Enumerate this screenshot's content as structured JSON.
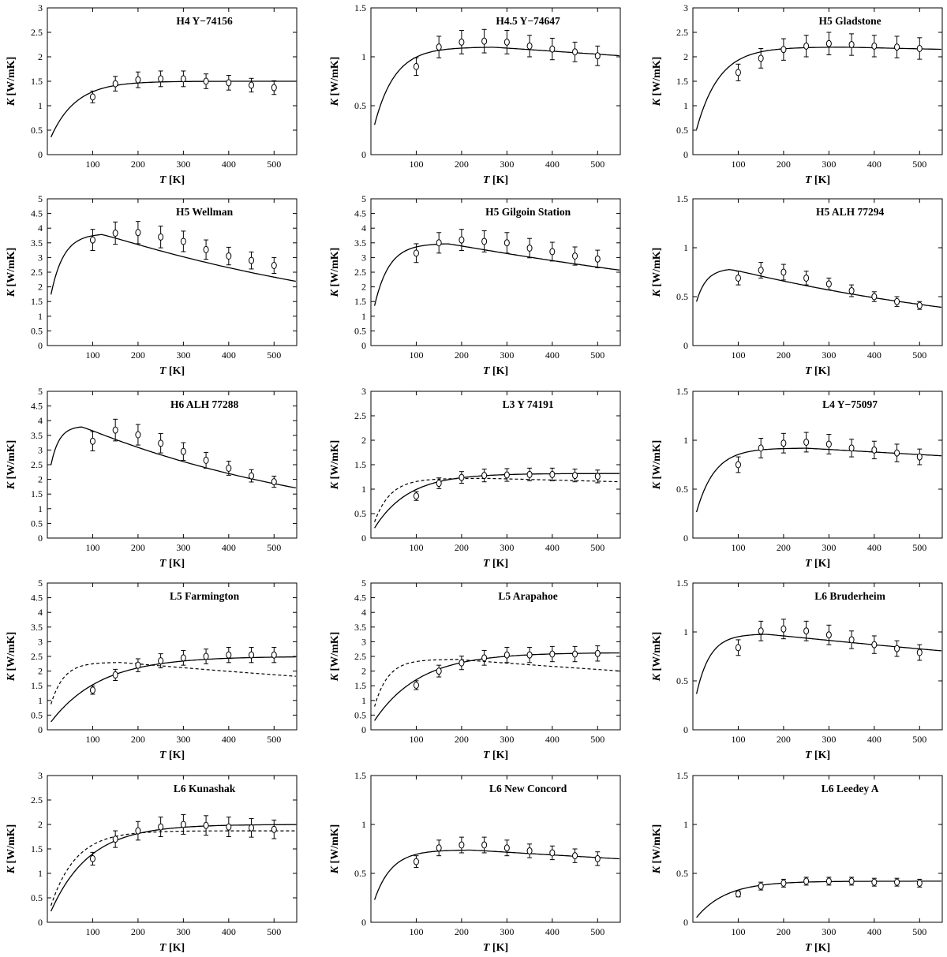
{
  "axis_labels": {
    "x_italic": "T",
    "x_unit": " [K]",
    "y_italic": "K",
    "y_unit": " [W/mK]"
  },
  "chart_data": [
    {
      "type": "line",
      "title": "H4  Y−74156",
      "xlabel": "T [K]",
      "ylabel": "K [W/mK]",
      "xlim": [
        0,
        550
      ],
      "ylim": [
        0,
        3
      ],
      "x_ticks": [
        100,
        200,
        300,
        400,
        500
      ],
      "y_ticks": [
        0,
        0.5,
        1,
        1.5,
        2,
        2.5,
        3
      ],
      "x": [
        100,
        150,
        200,
        250,
        300,
        350,
        400,
        450,
        500
      ],
      "values": [
        1.18,
        1.45,
        1.53,
        1.55,
        1.55,
        1.5,
        1.47,
        1.42,
        1.37
      ],
      "err": [
        0.12,
        0.15,
        0.16,
        0.16,
        0.16,
        0.15,
        0.15,
        0.14,
        0.14
      ],
      "model": {
        "peak": 1.5,
        "tpeak": 300,
        "k0": 0.18,
        "fall": 0.0,
        "rise": 55
      },
      "dashed": null
    },
    {
      "type": "line",
      "title": "H4.5  Y−74647",
      "xlabel": "T [K]",
      "ylabel": "K [W/mK]",
      "xlim": [
        0,
        550
      ],
      "ylim": [
        0,
        1.5
      ],
      "x_ticks": [
        100,
        200,
        300,
        400,
        500
      ],
      "y_ticks": [
        0,
        0.5,
        1,
        1.5
      ],
      "x": [
        100,
        150,
        200,
        250,
        300,
        350,
        400,
        450,
        500
      ],
      "values": [
        0.9,
        1.1,
        1.15,
        1.16,
        1.15,
        1.11,
        1.08,
        1.05,
        1.01
      ],
      "err": [
        0.09,
        0.11,
        0.12,
        0.12,
        0.12,
        0.11,
        0.11,
        0.1,
        0.1
      ],
      "model": {
        "peak": 1.1,
        "tpeak": 270,
        "k0": 0.15,
        "fall": 0.0003,
        "rise": 45
      },
      "dashed": null
    },
    {
      "type": "line",
      "title": "H5  Gladstone",
      "xlabel": "T [K]",
      "ylabel": "K [W/mK]",
      "xlim": [
        0,
        550
      ],
      "ylim": [
        0,
        3
      ],
      "x_ticks": [
        100,
        200,
        300,
        400,
        500
      ],
      "y_ticks": [
        0,
        0.5,
        1,
        1.5,
        2,
        2.5,
        3
      ],
      "x": [
        100,
        150,
        200,
        250,
        300,
        350,
        400,
        450,
        500
      ],
      "values": [
        1.68,
        1.97,
        2.15,
        2.22,
        2.27,
        2.25,
        2.22,
        2.2,
        2.17
      ],
      "err": [
        0.17,
        0.2,
        0.22,
        0.22,
        0.23,
        0.22,
        0.22,
        0.22,
        0.22
      ],
      "model": {
        "peak": 2.2,
        "tpeak": 330,
        "k0": 0.22,
        "fall": 0.0001,
        "rise": 50
      },
      "dashed": null
    },
    {
      "type": "line",
      "title": "H5  Wellman",
      "xlabel": "T [K]",
      "ylabel": "K [W/mK]",
      "xlim": [
        0,
        550
      ],
      "ylim": [
        0,
        5
      ],
      "x_ticks": [
        100,
        200,
        300,
        400,
        500
      ],
      "y_ticks": [
        0,
        0.5,
        1,
        1.5,
        2,
        2.5,
        3,
        3.5,
        4,
        4.5,
        5
      ],
      "x": [
        100,
        150,
        200,
        250,
        300,
        350,
        400,
        450,
        500
      ],
      "values": [
        3.6,
        3.83,
        3.85,
        3.7,
        3.55,
        3.27,
        3.05,
        2.9,
        2.73
      ],
      "err": [
        0.36,
        0.38,
        0.38,
        0.37,
        0.35,
        0.33,
        0.3,
        0.29,
        0.27
      ],
      "model": {
        "peak": 3.82,
        "tpeak": 120,
        "k0": 1.05,
        "fall": 0.0013,
        "rise": 28
      },
      "dashed": null
    },
    {
      "type": "line",
      "title": "H5  Gilgoin Station",
      "xlabel": "T [K]",
      "ylabel": "K [W/mK]",
      "xlim": [
        0,
        550
      ],
      "ylim": [
        0,
        5
      ],
      "x_ticks": [
        100,
        200,
        300,
        400,
        500
      ],
      "y_ticks": [
        0,
        0.5,
        1,
        1.5,
        2,
        2.5,
        3,
        3.5,
        4,
        4.5,
        5
      ],
      "x": [
        100,
        150,
        200,
        250,
        300,
        350,
        400,
        450,
        500
      ],
      "values": [
        3.15,
        3.5,
        3.6,
        3.55,
        3.5,
        3.32,
        3.2,
        3.05,
        2.95
      ],
      "err": [
        0.32,
        0.35,
        0.36,
        0.36,
        0.35,
        0.33,
        0.32,
        0.31,
        0.3
      ],
      "model": {
        "peak": 3.48,
        "tpeak": 170,
        "k0": 0.75,
        "fall": 0.0008,
        "rise": 32
      },
      "dashed": null
    },
    {
      "type": "line",
      "title": "H5  ALH 77294",
      "xlabel": "T [K]",
      "ylabel": "K [W/mK]",
      "xlim": [
        0,
        550
      ],
      "ylim": [
        0,
        1.5
      ],
      "x_ticks": [
        100,
        200,
        300,
        400,
        500
      ],
      "y_ticks": [
        0,
        0.5,
        1,
        1.5
      ],
      "x": [
        100,
        150,
        200,
        250,
        300,
        350,
        400,
        450,
        500
      ],
      "values": [
        0.69,
        0.77,
        0.75,
        0.69,
        0.63,
        0.56,
        0.5,
        0.45,
        0.41
      ],
      "err": [
        0.07,
        0.08,
        0.08,
        0.07,
        0.06,
        0.06,
        0.05,
        0.05,
        0.04
      ],
      "model": {
        "peak": 0.79,
        "tpeak": 80,
        "k0": 0.3,
        "fall": 0.0015,
        "rise": 22
      },
      "dashed": null
    },
    {
      "type": "line",
      "title": "H6  ALH 77288",
      "xlabel": "T [K]",
      "ylabel": "K [W/mK]",
      "xlim": [
        0,
        550
      ],
      "ylim": [
        0,
        5
      ],
      "x_ticks": [
        100,
        200,
        300,
        400,
        500
      ],
      "y_ticks": [
        0,
        0.5,
        1,
        1.5,
        2,
        2.5,
        3,
        3.5,
        4,
        4.5,
        5
      ],
      "x": [
        100,
        150,
        200,
        250,
        300,
        350,
        400,
        450,
        500
      ],
      "values": [
        3.3,
        3.68,
        3.52,
        3.23,
        2.95,
        2.65,
        2.38,
        2.12,
        1.92
      ],
      "err": [
        0.33,
        0.37,
        0.35,
        0.33,
        0.3,
        0.27,
        0.24,
        0.21,
        0.19
      ],
      "model": {
        "peak": 3.82,
        "tpeak": 75,
        "k0": 1.75,
        "fall": 0.0017,
        "rise": 18
      },
      "dashed": null
    },
    {
      "type": "line",
      "title": "L3  Y 74191",
      "xlabel": "T [K]",
      "ylabel": "K [W/mK]",
      "xlim": [
        0,
        550
      ],
      "ylim": [
        0,
        3
      ],
      "x_ticks": [
        100,
        200,
        300,
        400,
        500
      ],
      "y_ticks": [
        0,
        0.5,
        1,
        1.5,
        2,
        2.5,
        3
      ],
      "x": [
        100,
        150,
        200,
        250,
        300,
        350,
        400,
        450,
        500
      ],
      "values": [
        0.86,
        1.12,
        1.24,
        1.28,
        1.29,
        1.3,
        1.3,
        1.28,
        1.26
      ],
      "err": [
        0.09,
        0.11,
        0.12,
        0.13,
        0.13,
        0.13,
        0.13,
        0.13,
        0.13
      ],
      "model": {
        "peak": 1.32,
        "tpeak": 480,
        "k0": 0.08,
        "fall": 0.0,
        "rise": 75
      },
      "dashed": {
        "peak": 1.22,
        "tpeak": 260,
        "k0": 0.1,
        "fall": 0.0002,
        "rise": 35
      }
    },
    {
      "type": "line",
      "title": "L4  Y−75097",
      "xlabel": "T [K]",
      "ylabel": "K [W/mK]",
      "xlim": [
        0,
        550
      ],
      "ylim": [
        0,
        1.5
      ],
      "x_ticks": [
        100,
        200,
        300,
        400,
        500
      ],
      "y_ticks": [
        0,
        0.5,
        1,
        1.5
      ],
      "x": [
        100,
        150,
        200,
        250,
        300,
        350,
        400,
        450,
        500
      ],
      "values": [
        0.75,
        0.92,
        0.97,
        0.98,
        0.96,
        0.92,
        0.9,
        0.87,
        0.83
      ],
      "err": [
        0.08,
        0.1,
        0.1,
        0.1,
        0.1,
        0.09,
        0.09,
        0.09,
        0.08
      ],
      "model": {
        "peak": 0.92,
        "tpeak": 250,
        "k0": 0.12,
        "fall": 0.0003,
        "rise": 40
      },
      "dashed": null
    },
    {
      "type": "line",
      "title": "L5  Farmington",
      "xlabel": "T [K]",
      "ylabel": "K [W/mK]",
      "xlim": [
        0,
        550
      ],
      "ylim": [
        0,
        5
      ],
      "x_ticks": [
        100,
        200,
        300,
        400,
        500
      ],
      "y_ticks": [
        0,
        0.5,
        1,
        1.5,
        2,
        2.5,
        3,
        3.5,
        4,
        4.5,
        5
      ],
      "x": [
        100,
        150,
        200,
        250,
        300,
        350,
        400,
        450,
        500
      ],
      "values": [
        1.35,
        1.87,
        2.2,
        2.35,
        2.45,
        2.5,
        2.55,
        2.55,
        2.55
      ],
      "err": [
        0.14,
        0.19,
        0.22,
        0.24,
        0.25,
        0.25,
        0.26,
        0.26,
        0.26
      ],
      "model": {
        "peak": 2.5,
        "tpeak": 600,
        "k0": 0.1,
        "fall": 0.0,
        "rise": 110
      },
      "dashed": {
        "peak": 2.3,
        "tpeak": 160,
        "k0": 0.4,
        "fall": 0.0006,
        "rise": 28
      }
    },
    {
      "type": "line",
      "title": "L5  Arapahoe",
      "xlabel": "T [K]",
      "ylabel": "K [W/mK]",
      "xlim": [
        0,
        550
      ],
      "ylim": [
        0,
        5
      ],
      "x_ticks": [
        100,
        200,
        300,
        400,
        500
      ],
      "y_ticks": [
        0,
        0.5,
        1,
        1.5,
        2,
        2.5,
        3,
        3.5,
        4,
        4.5,
        5
      ],
      "x": [
        100,
        150,
        200,
        250,
        300,
        350,
        400,
        450,
        500
      ],
      "values": [
        1.52,
        2.0,
        2.28,
        2.45,
        2.55,
        2.55,
        2.58,
        2.58,
        2.6
      ],
      "err": [
        0.15,
        0.2,
        0.23,
        0.25,
        0.26,
        0.26,
        0.26,
        0.26,
        0.26
      ],
      "model": {
        "peak": 2.63,
        "tpeak": 580,
        "k0": 0.12,
        "fall": 0.0,
        "rise": 100
      },
      "dashed": {
        "peak": 2.4,
        "tpeak": 190,
        "k0": 0.3,
        "fall": 0.0005,
        "rise": 30
      }
    },
    {
      "type": "line",
      "title": "L6  Bruderheim",
      "xlabel": "T [K]",
      "ylabel": "K [W/mK]",
      "xlim": [
        0,
        550
      ],
      "ylim": [
        0,
        1.5
      ],
      "x_ticks": [
        100,
        200,
        300,
        400,
        500
      ],
      "y_ticks": [
        0,
        0.5,
        1,
        1.5
      ],
      "x": [
        100,
        150,
        200,
        250,
        300,
        350,
        400,
        450,
        500
      ],
      "values": [
        0.84,
        1.01,
        1.03,
        1.01,
        0.97,
        0.92,
        0.87,
        0.83,
        0.79
      ],
      "err": [
        0.08,
        0.1,
        0.1,
        0.1,
        0.1,
        0.09,
        0.09,
        0.08,
        0.08
      ],
      "model": {
        "peak": 0.98,
        "tpeak": 160,
        "k0": 0.18,
        "fall": 0.0005,
        "rise": 30
      },
      "dashed": null
    },
    {
      "type": "line",
      "title": "L6 Kunashak",
      "xlabel": "T [K]",
      "ylabel": "K [W/mK]",
      "xlim": [
        0,
        550
      ],
      "ylim": [
        0,
        3
      ],
      "x_ticks": [
        100,
        200,
        300,
        400,
        500
      ],
      "y_ticks": [
        0,
        0.5,
        1,
        1.5,
        2,
        2.5,
        3
      ],
      "x": [
        100,
        150,
        200,
        250,
        300,
        350,
        400,
        450,
        500
      ],
      "values": [
        1.3,
        1.7,
        1.87,
        1.95,
        2.0,
        1.98,
        1.95,
        1.93,
        1.9
      ],
      "err": [
        0.13,
        0.17,
        0.19,
        0.2,
        0.2,
        0.2,
        0.2,
        0.19,
        0.19
      ],
      "model": {
        "peak": 2.0,
        "tpeak": 480,
        "k0": 0.05,
        "fall": 0.0,
        "rise": 85
      },
      "dashed": {
        "peak": 1.87,
        "tpeak": 330,
        "k0": 0.1,
        "fall": 0.0,
        "rise": 55
      }
    },
    {
      "type": "line",
      "title": "L6 New Concord",
      "xlabel": "T [K]",
      "ylabel": "K [W/mK]",
      "xlim": [
        0,
        550
      ],
      "ylim": [
        0,
        1.5
      ],
      "x_ticks": [
        100,
        200,
        300,
        400,
        500
      ],
      "y_ticks": [
        0,
        0.5,
        1,
        1.5
      ],
      "x": [
        100,
        150,
        200,
        250,
        300,
        350,
        400,
        450,
        500
      ],
      "values": [
        0.62,
        0.76,
        0.79,
        0.79,
        0.76,
        0.73,
        0.71,
        0.68,
        0.65
      ],
      "err": [
        0.06,
        0.08,
        0.08,
        0.08,
        0.08,
        0.07,
        0.07,
        0.07,
        0.07
      ],
      "model": {
        "peak": 0.74,
        "tpeak": 220,
        "k0": 0.11,
        "fall": 0.0004,
        "rise": 38
      },
      "dashed": null
    },
    {
      "type": "line",
      "title": "L6 Leedey A",
      "xlabel": "T [K]",
      "ylabel": "K [W/mK]",
      "xlim": [
        0,
        550
      ],
      "ylim": [
        0,
        1.5
      ],
      "x_ticks": [
        100,
        200,
        300,
        400,
        500
      ],
      "y_ticks": [
        0,
        0.5,
        1,
        1.5
      ],
      "x": [
        100,
        150,
        200,
        250,
        300,
        350,
        400,
        450,
        500
      ],
      "values": [
        0.29,
        0.37,
        0.4,
        0.42,
        0.42,
        0.42,
        0.41,
        0.41,
        0.4
      ],
      "err": [
        0.03,
        0.04,
        0.04,
        0.04,
        0.04,
        0.04,
        0.04,
        0.04,
        0.04
      ],
      "model": {
        "peak": 0.42,
        "tpeak": 400,
        "k0": 0.0,
        "fall": 0.0,
        "rise": 65
      },
      "dashed": null
    }
  ]
}
